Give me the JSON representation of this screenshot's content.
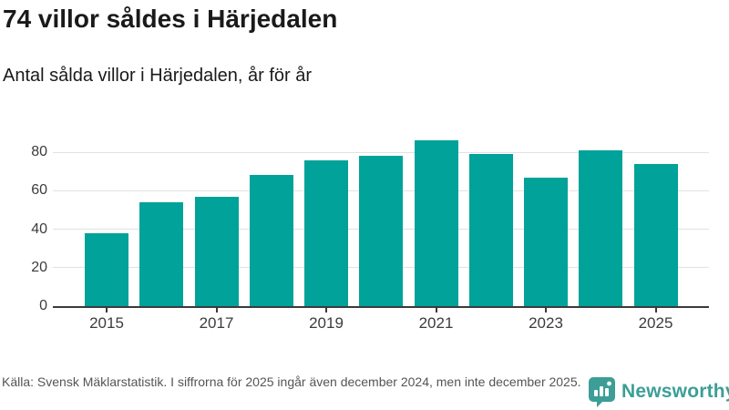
{
  "header": {
    "title": "74 villor såldes i Härjedalen",
    "subtitle": "Antal sålda villor i Härjedalen, år för år"
  },
  "footer": {
    "source_text": "Källa: Svensk Mäklarstatistik. I siffrorna för 2025 ingår även december 2024, men inte december 2025.",
    "brand_name": "Newsworthy",
    "brand_icon": "newsworthy-bubble-barchart-icon"
  },
  "colors": {
    "bar": "#00A299",
    "brand": "#3C9E97",
    "axis": "#3a3a3a",
    "grid": "#e2e2e2",
    "text_dark": "#1a1a1a",
    "text_muted": "#555555"
  },
  "chart_data": {
    "type": "bar",
    "title": "74 villor såldes i Härjedalen",
    "subtitle": "Antal sålda villor i Härjedalen, år för år",
    "categories": [
      2015,
      2016,
      2017,
      2018,
      2019,
      2020,
      2021,
      2022,
      2023,
      2024,
      2025
    ],
    "values": [
      38,
      54,
      57,
      68,
      76,
      78,
      86,
      79,
      67,
      81,
      74
    ],
    "xlabel": "",
    "ylabel": "",
    "ylim": [
      0,
      90
    ],
    "yticks": [
      0,
      20,
      40,
      60,
      80
    ],
    "xticks_labeled": [
      2015,
      2017,
      2019,
      2021,
      2023,
      2025
    ],
    "grid": true,
    "legend_position": "none",
    "bar_color": "#00A299"
  }
}
